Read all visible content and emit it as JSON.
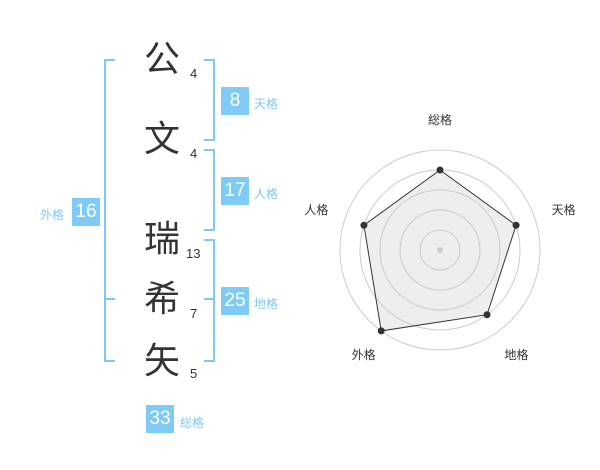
{
  "name": {
    "chars": [
      {
        "char": "公",
        "strokes": "4"
      },
      {
        "char": "文",
        "strokes": "4"
      },
      {
        "char": "瑞",
        "strokes": "13"
      },
      {
        "char": "希",
        "strokes": "7"
      },
      {
        "char": "矢",
        "strokes": "5"
      }
    ]
  },
  "kakusu": {
    "tenkaku": {
      "label": "天格",
      "value": "8"
    },
    "jinkaku": {
      "label": "人格",
      "value": "17"
    },
    "chikaku": {
      "label": "地格",
      "value": "25"
    },
    "gaikaku": {
      "label": "外格",
      "value": "16"
    },
    "soukaku": {
      "label": "総格",
      "value": "33"
    }
  },
  "accent": "#7fcbf6",
  "chart_data": {
    "type": "radar",
    "axes": [
      "総格",
      "天格",
      "地格",
      "外格",
      "人格"
    ],
    "values": [
      4,
      4,
      4,
      5,
      4
    ],
    "range": [
      0,
      5
    ],
    "rings": 5
  }
}
